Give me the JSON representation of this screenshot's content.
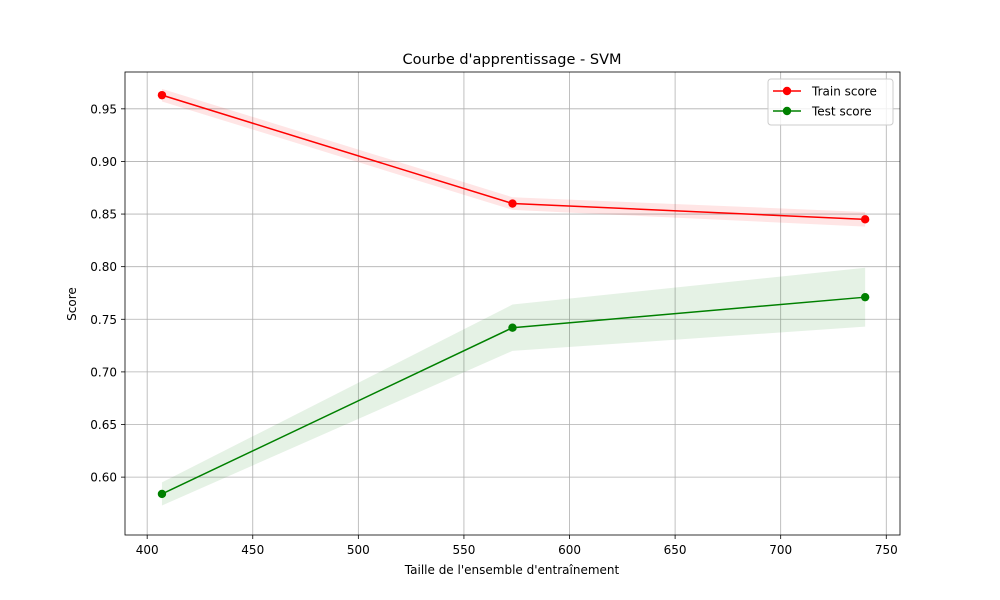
{
  "chart_data": {
    "type": "line",
    "title": "Courbe d'apprentissage - SVM",
    "xlabel": "Taille de l'ensemble d'entraînement",
    "ylabel": "Score",
    "xlim": [
      389.5,
      756.5
    ],
    "ylim": [
      0.545,
      0.985
    ],
    "xticks": [
      400,
      450,
      500,
      550,
      600,
      650,
      700,
      750
    ],
    "yticks": [
      0.6,
      0.65,
      0.7,
      0.75,
      0.8,
      0.85,
      0.9,
      0.95
    ],
    "grid": true,
    "legend_position": "top-right",
    "x": [
      407,
      573,
      740
    ],
    "series": [
      {
        "name": "Train score",
        "color": "#ff0000",
        "values": [
          0.963,
          0.86,
          0.845
        ],
        "band_lower": [
          0.957,
          0.854,
          0.838
        ],
        "band_upper": [
          0.969,
          0.866,
          0.852
        ]
      },
      {
        "name": "Test score",
        "color": "#008000",
        "values": [
          0.584,
          0.742,
          0.771
        ],
        "band_lower": [
          0.573,
          0.72,
          0.743
        ],
        "band_upper": [
          0.595,
          0.764,
          0.799
        ]
      }
    ]
  }
}
